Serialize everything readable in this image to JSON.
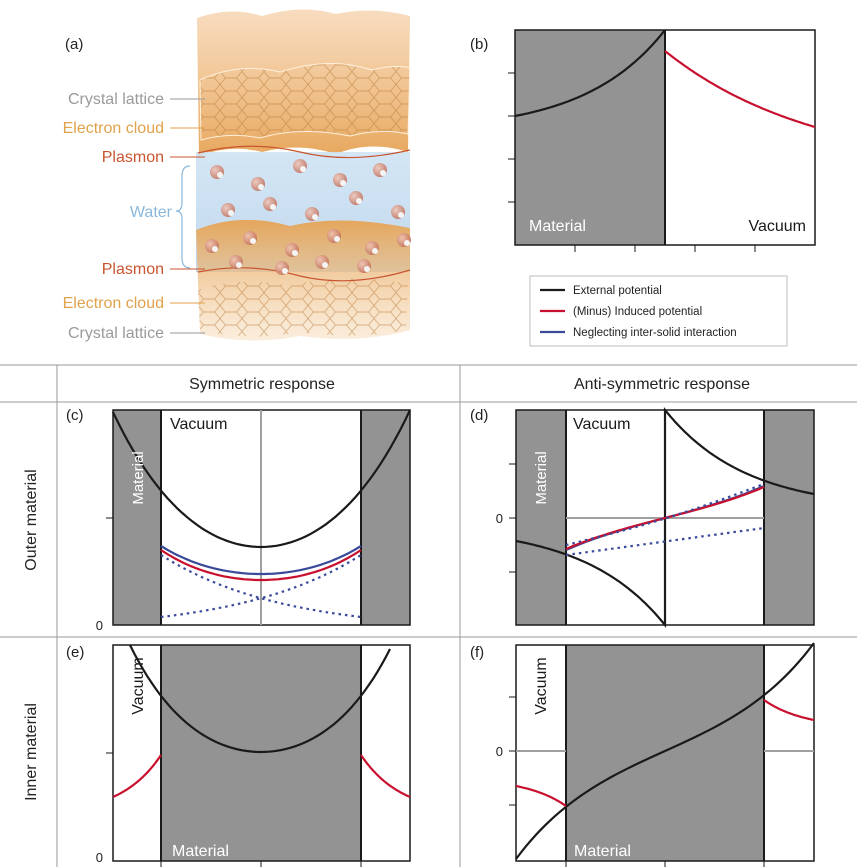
{
  "panels": {
    "a": "(a)",
    "b": "(b)",
    "c": "(c)",
    "d": "(d)",
    "e": "(e)",
    "f": "(f)"
  },
  "illustration": {
    "labels": {
      "crystal_top": "Crystal lattice",
      "electron_top": "Electron cloud",
      "plasmon_top": "Plasmon",
      "water": "Water",
      "plasmon_bottom": "Plasmon",
      "electron_bottom": "Electron cloud",
      "crystal_bottom": "Crystal lattice"
    },
    "colors": {
      "crystal": "#9a9a9a",
      "electron": "#e0a24a",
      "plasmon": "#c8552f",
      "water": "#8ab8dc"
    }
  },
  "legend": {
    "external": "External potential",
    "induced": "(Minus) Induced potential",
    "neglect": "Neglecting inter-solid interaction"
  },
  "grid": {
    "col_symmetric": "Symmetric response",
    "col_antisymmetric": "Anti-symmetric response",
    "row_outer": "Outer material",
    "row_inner": "Inner material"
  },
  "region_labels": {
    "material": "Material",
    "vacuum": "Vacuum",
    "zero": "0"
  },
  "colors": {
    "material_fill": "#939393",
    "external": "#1a1a1a",
    "induced": "#c8102e",
    "neglect": "#3a4a9a",
    "zero_line": "#a0a0a0",
    "grid_line": "#9a9a9a"
  }
}
